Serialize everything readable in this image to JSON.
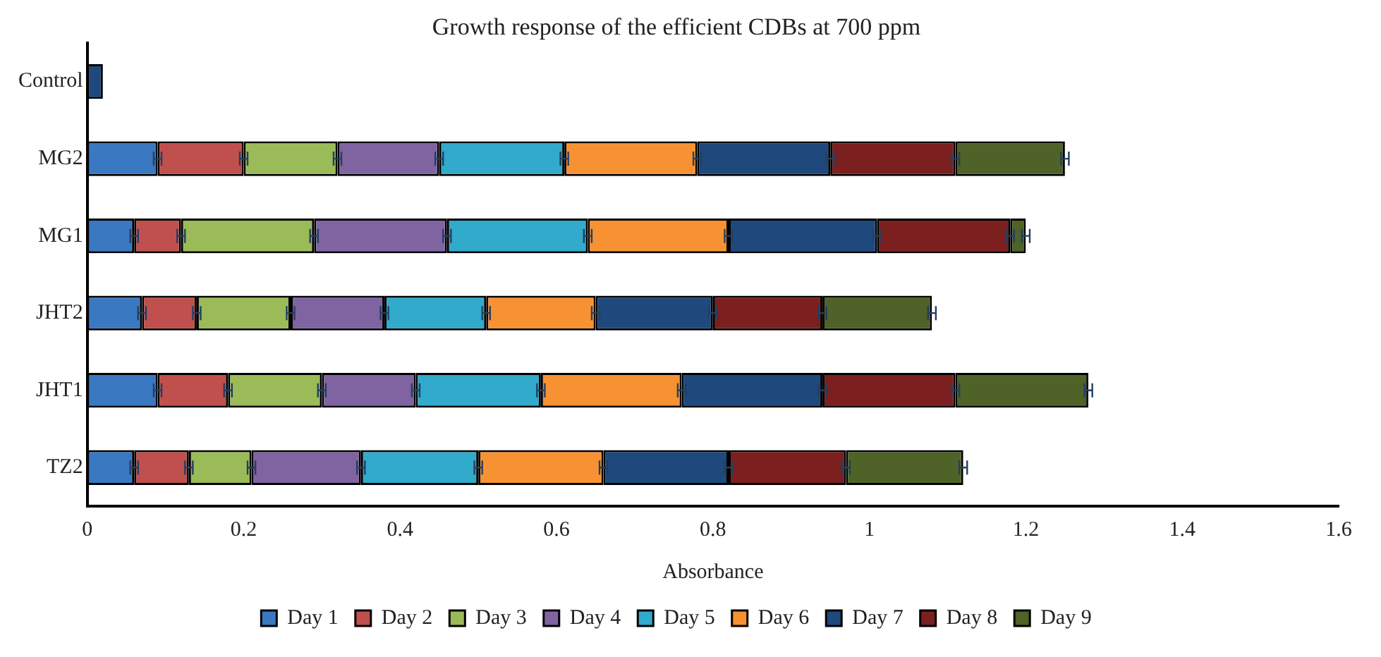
{
  "chart_data": {
    "type": "bar",
    "orientation": "horizontal",
    "stacked": true,
    "title": "Growth response of the efficient CDBs at 700 ppm",
    "xlabel": "Absorbance",
    "categories": [
      "Control",
      "MG2",
      "MG1",
      "JHT2",
      "JHT1",
      "TZ2"
    ],
    "series": [
      {
        "name": "Day 1",
        "color": "#3a78c2",
        "values": [
          null,
          0.09,
          0.06,
          0.07,
          0.09,
          0.06
        ],
        "errors": [
          null,
          0.005,
          0.005,
          0.005,
          0.005,
          0.005
        ]
      },
      {
        "name": "Day 2",
        "color": "#c0504d",
        "values": [
          null,
          0.11,
          0.06,
          0.07,
          0.09,
          0.07
        ],
        "errors": [
          null,
          0.005,
          0.005,
          0.005,
          0.005,
          0.005
        ]
      },
      {
        "name": "Day 3",
        "color": "#9bbb59",
        "values": [
          null,
          0.12,
          0.17,
          0.12,
          0.12,
          0.08
        ],
        "errors": [
          null,
          0.005,
          0.005,
          0.005,
          0.005,
          0.005
        ]
      },
      {
        "name": "Day 4",
        "color": "#8064a2",
        "values": [
          null,
          0.13,
          0.17,
          0.12,
          0.12,
          0.14
        ],
        "errors": [
          null,
          0.005,
          0.005,
          0.005,
          0.005,
          0.005
        ]
      },
      {
        "name": "Day 5",
        "color": "#31aacb",
        "values": [
          null,
          0.16,
          0.18,
          0.13,
          0.16,
          0.15
        ],
        "errors": [
          null,
          0.005,
          0.005,
          0.005,
          0.005,
          0.005
        ]
      },
      {
        "name": "Day 6",
        "color": "#f79232",
        "values": [
          null,
          0.17,
          0.18,
          0.14,
          0.18,
          0.16
        ],
        "errors": [
          null,
          0.005,
          0.005,
          0.005,
          0.005,
          0.005
        ]
      },
      {
        "name": "Day 7",
        "color": "#1f497d",
        "values": [
          0.02,
          0.17,
          0.19,
          0.15,
          0.18,
          0.16
        ],
        "errors": [
          null,
          0.005,
          0.005,
          0.005,
          0.005,
          0.005
        ]
      },
      {
        "name": "Day 8",
        "color": "#7b1f1f",
        "values": [
          null,
          0.16,
          0.17,
          0.14,
          0.17,
          0.15
        ],
        "errors": [
          null,
          0.005,
          0.005,
          0.005,
          0.005,
          0.005
        ]
      },
      {
        "name": "Day 9",
        "color": "#4f6228",
        "values": [
          null,
          0.14,
          0.02,
          0.14,
          0.17,
          0.15
        ],
        "errors": [
          null,
          0.005,
          0.005,
          0.005,
          0.005,
          0.005
        ]
      }
    ],
    "xlim": [
      0,
      1.6
    ],
    "xticks": [
      0,
      0.2,
      0.4,
      0.6,
      0.8,
      1,
      1.2,
      1.4,
      1.6
    ],
    "grid": false,
    "legend": "bottom"
  }
}
